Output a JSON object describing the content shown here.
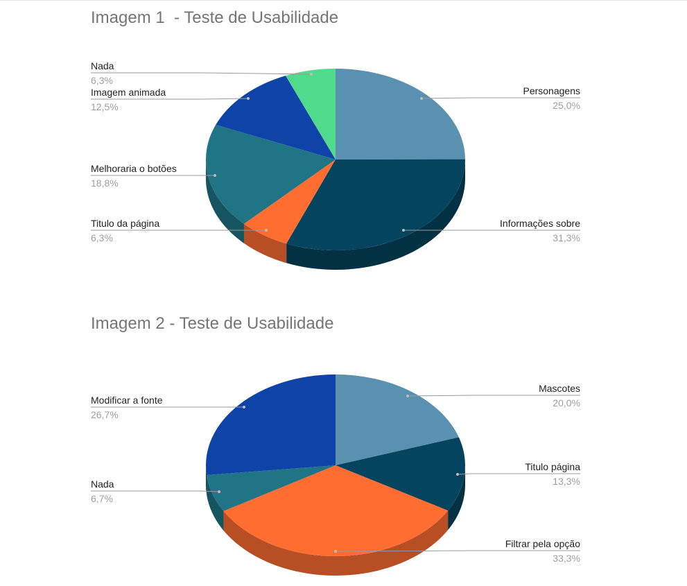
{
  "chart_data": [
    {
      "type": "pie",
      "title": "Imagem 1  - Teste de Usabilidade",
      "slices": [
        {
          "label": "Personagens",
          "value": 25.0,
          "display": "25,0%",
          "color": "#5a90b0"
        },
        {
          "label": "Informações sobre",
          "value": 31.3,
          "display": "31,3%",
          "color": "#04445f"
        },
        {
          "label": "Titulo da página",
          "value": 6.3,
          "display": "6,3%",
          "color": "#ff6d31"
        },
        {
          "label": "Melhoraria o botões",
          "value": 18.8,
          "display": "18,8%",
          "color": "#1f7585"
        },
        {
          "label": "Imagem animada",
          "value": 12.5,
          "display": "12,5%",
          "color": "#0e43a8"
        },
        {
          "label": "Nada",
          "value": 6.3,
          "display": "6,3%",
          "color": "#4fda8c"
        }
      ]
    },
    {
      "type": "pie",
      "title": "Imagem 2 - Teste de Usabilidade",
      "slices": [
        {
          "label": "Mascotes",
          "value": 20.0,
          "display": "20,0%",
          "color": "#5a90b0"
        },
        {
          "label": "Titulo página",
          "value": 13.3,
          "display": "13,3%",
          "color": "#04445f"
        },
        {
          "label": "Filtrar pela opção",
          "value": 33.3,
          "display": "33,3%",
          "color": "#ff6d31"
        },
        {
          "label": "Nada",
          "value": 6.7,
          "display": "6,7%",
          "color": "#1f7585"
        },
        {
          "label": "Modificar a fonte",
          "value": 26.7,
          "display": "26,7%",
          "color": "#0e43a8"
        }
      ]
    }
  ]
}
